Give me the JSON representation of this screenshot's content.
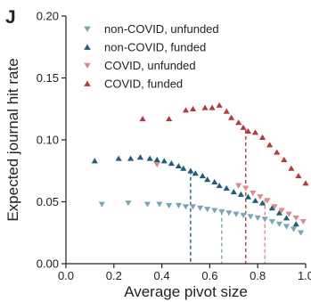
{
  "panel_label": "J",
  "colors": {
    "non_covid_unfunded": "#7aa5b8",
    "non_covid_funded": "#1f5f7c",
    "covid_unfunded": "#e0898d",
    "covid_funded": "#b43a3f",
    "axis": "#222222"
  },
  "chart_data": {
    "type": "scatter",
    "xlabel": "Average pivot size",
    "ylabel": "Expected journal hit rate",
    "xlim": [
      0.0,
      1.0
    ],
    "ylim": [
      0.0,
      0.2
    ],
    "x_ticks": [
      "0.0",
      "0.2",
      "0.4",
      "0.6",
      "0.8",
      "1.0"
    ],
    "y_ticks": [
      "0.00",
      "0.05",
      "0.10",
      "0.15",
      "0.20"
    ],
    "legend_position": "top-left",
    "series": [
      {
        "name": "non-COVID, unfunded",
        "marker": "triangle-down",
        "color": "#7aa5b8",
        "points": [
          [
            0.15,
            0.048
          ],
          [
            0.26,
            0.049
          ],
          [
            0.34,
            0.048
          ],
          [
            0.39,
            0.048
          ],
          [
            0.43,
            0.047
          ],
          [
            0.47,
            0.047
          ],
          [
            0.5,
            0.046
          ],
          [
            0.53,
            0.046
          ],
          [
            0.56,
            0.045
          ],
          [
            0.59,
            0.044
          ],
          [
            0.62,
            0.043
          ],
          [
            0.65,
            0.042
          ],
          [
            0.68,
            0.041
          ],
          [
            0.71,
            0.04
          ],
          [
            0.74,
            0.039
          ],
          [
            0.77,
            0.038
          ],
          [
            0.8,
            0.037
          ],
          [
            0.83,
            0.036
          ],
          [
            0.86,
            0.034
          ],
          [
            0.89,
            0.032
          ],
          [
            0.92,
            0.03
          ],
          [
            0.95,
            0.028
          ],
          [
            0.98,
            0.025
          ]
        ]
      },
      {
        "name": "non-COVID, funded",
        "marker": "triangle-up",
        "color": "#1f5f7c",
        "points": [
          [
            0.12,
            0.083
          ],
          [
            0.22,
            0.085
          ],
          [
            0.27,
            0.085
          ],
          [
            0.31,
            0.086
          ],
          [
            0.35,
            0.085
          ],
          [
            0.38,
            0.084
          ],
          [
            0.41,
            0.083
          ],
          [
            0.44,
            0.081
          ],
          [
            0.47,
            0.079
          ],
          [
            0.49,
            0.077
          ],
          [
            0.52,
            0.075
          ],
          [
            0.54,
            0.073
          ],
          [
            0.57,
            0.071
          ],
          [
            0.59,
            0.068
          ],
          [
            0.62,
            0.066
          ],
          [
            0.64,
            0.063
          ],
          [
            0.67,
            0.061
          ],
          [
            0.7,
            0.058
          ],
          [
            0.73,
            0.056
          ],
          [
            0.76,
            0.054
          ],
          [
            0.79,
            0.051
          ],
          [
            0.82,
            0.049
          ],
          [
            0.86,
            0.045
          ],
          [
            0.89,
            0.041
          ],
          [
            0.92,
            0.037
          ],
          [
            0.96,
            0.032
          ]
        ]
      },
      {
        "name": "COVID, unfunded",
        "marker": "triangle-down",
        "color": "#e0898d",
        "points": [
          [
            0.38,
            0.08
          ],
          [
            0.72,
            0.063
          ],
          [
            0.75,
            0.061
          ],
          [
            0.78,
            0.057
          ],
          [
            0.81,
            0.054
          ],
          [
            0.84,
            0.051
          ],
          [
            0.87,
            0.046
          ],
          [
            0.9,
            0.043
          ],
          [
            0.93,
            0.04
          ],
          [
            0.96,
            0.037
          ],
          [
            0.99,
            0.034
          ]
        ]
      },
      {
        "name": "COVID, funded",
        "marker": "triangle-up",
        "color": "#b43a3f",
        "points": [
          [
            0.32,
            0.117
          ],
          [
            0.43,
            0.117
          ],
          [
            0.5,
            0.124
          ],
          [
            0.53,
            0.125
          ],
          [
            0.58,
            0.126
          ],
          [
            0.61,
            0.126
          ],
          [
            0.64,
            0.128
          ],
          [
            0.67,
            0.123
          ],
          [
            0.69,
            0.118
          ],
          [
            0.72,
            0.114
          ],
          [
            0.74,
            0.11
          ],
          [
            0.76,
            0.107
          ],
          [
            0.79,
            0.106
          ],
          [
            0.82,
            0.102
          ],
          [
            0.85,
            0.096
          ],
          [
            0.88,
            0.09
          ],
          [
            0.91,
            0.084
          ],
          [
            0.94,
            0.077
          ],
          [
            0.97,
            0.071
          ],
          [
            1.0,
            0.065
          ]
        ]
      }
    ],
    "reference_lines": [
      {
        "series": "non-COVID, funded",
        "x": 0.52,
        "y": 0.075,
        "color": "#1f5f7c"
      },
      {
        "series": "non-COVID, unfunded",
        "x": 0.65,
        "y": 0.042,
        "color": "#7aa5b8"
      },
      {
        "series": "COVID, funded",
        "x": 0.75,
        "y": 0.108,
        "color": "#b43a3f"
      },
      {
        "series": "COVID, unfunded",
        "x": 0.83,
        "y": 0.052,
        "color": "#e0898d"
      }
    ]
  }
}
